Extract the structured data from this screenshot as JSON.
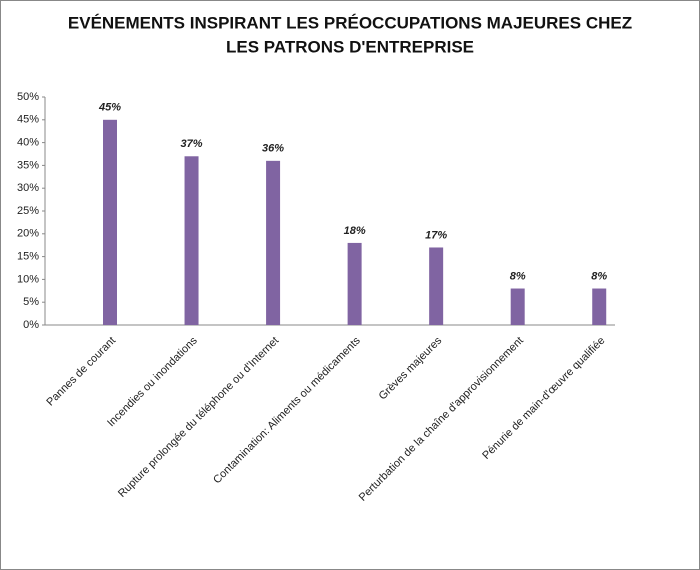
{
  "chart_data": {
    "type": "bar",
    "title": [
      "EVÉNEMENTS INSPIRANT LES PRÉOCCUPATIONS MAJEURES CHEZ",
      "LES PATRONS D'ENTREPRISE"
    ],
    "categories": [
      "Pannes de courant",
      "Incendies ou inondations",
      "Rupture prolongée du téléphone ou d'Internet",
      "Contamination: Aliments ou médicaments",
      "Grèves majeures",
      "Perturbation de la chaîne d'approvisionnement",
      "Pénurie de main-d'œuvre qualifiée"
    ],
    "values": [
      45,
      37,
      36,
      18,
      17,
      8,
      8
    ],
    "value_labels": [
      "45%",
      "37%",
      "36%",
      "18%",
      "17%",
      "8%",
      "8%"
    ],
    "color": "#8064a2",
    "ylim": [
      0,
      50
    ],
    "yticks": [
      {
        "value": 0,
        "label": "0%"
      },
      {
        "value": 5,
        "label": "5%"
      },
      {
        "value": 10,
        "label": "10%"
      },
      {
        "value": 15,
        "label": "15%"
      },
      {
        "value": 20,
        "label": "20%"
      },
      {
        "value": 25,
        "label": "25%"
      },
      {
        "value": 30,
        "label": "30%"
      },
      {
        "value": 35,
        "label": "35%"
      },
      {
        "value": 40,
        "label": "40%"
      },
      {
        "value": 45,
        "label": "45%"
      },
      {
        "value": 50,
        "label": "50%"
      }
    ],
    "grid": false
  }
}
